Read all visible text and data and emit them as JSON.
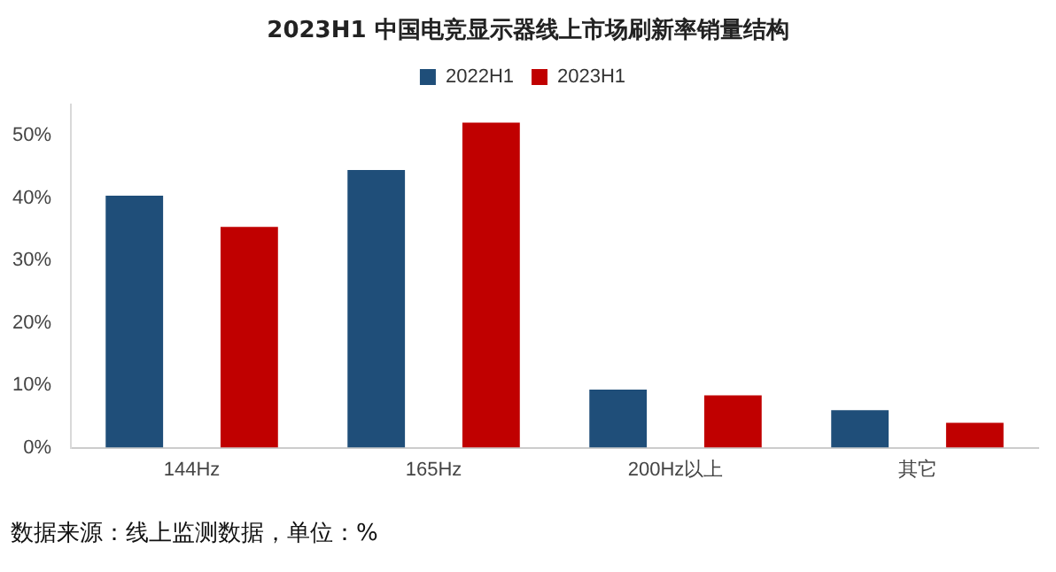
{
  "chart_data": {
    "type": "bar",
    "title": "2023H1 中国电竞显示器线上市场刷新率销量结构",
    "categories": [
      "144Hz",
      "165Hz",
      "200Hz以上",
      "其它"
    ],
    "series": [
      {
        "name": "2022H1",
        "color": "#1f4e79",
        "values": [
          40.4,
          44.5,
          9.3,
          6.0
        ]
      },
      {
        "name": "2023H1",
        "color": "#c00000",
        "values": [
          35.4,
          52.1,
          8.4,
          4.0
        ]
      }
    ],
    "yticks": [
      {
        "value": 0,
        "label": "0%"
      },
      {
        "value": 10,
        "label": "10%"
      },
      {
        "value": 20,
        "label": "20%"
      },
      {
        "value": 30,
        "label": "30%"
      },
      {
        "value": 40,
        "label": "40%"
      },
      {
        "value": 50,
        "label": "50%"
      }
    ],
    "ylim": [
      0,
      55
    ],
    "grid": false,
    "legend": "top",
    "annotations": [
      "数据来源：线上监测数据，单位：%"
    ]
  }
}
